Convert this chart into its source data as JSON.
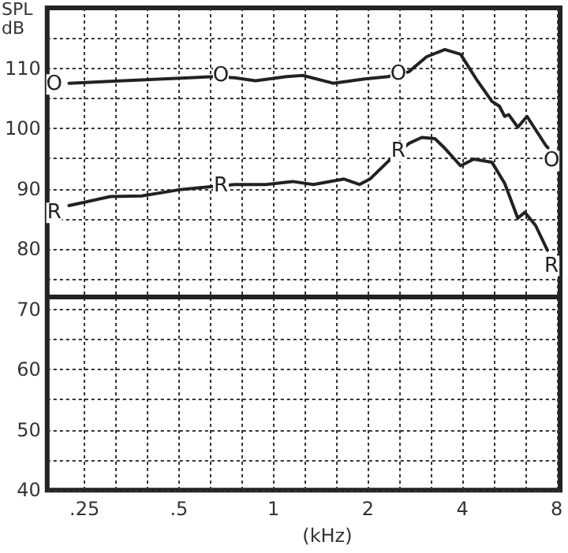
{
  "chart_data": {
    "type": "line",
    "ylabel": "SPL dB",
    "xlabel": "(kHz)",
    "log": "x",
    "xlim": [
      0.19,
      8.2
    ],
    "ylim": [
      40,
      120
    ],
    "xticks": [
      {
        "value": 0.25,
        "label": ".25"
      },
      {
        "value": 0.315,
        "label": null
      },
      {
        "value": 0.397,
        "label": null
      },
      {
        "value": 0.5,
        "label": ".5"
      },
      {
        "value": 0.63,
        "label": null
      },
      {
        "value": 0.794,
        "label": null
      },
      1,
      {
        "value": 1.26,
        "label": null
      },
      {
        "value": 1.587,
        "label": null
      },
      2,
      {
        "value": 2.52,
        "label": null
      },
      {
        "value": 3.17,
        "label": null
      },
      4,
      {
        "value": 5.04,
        "label": null
      },
      {
        "value": 6.35,
        "label": null
      },
      8
    ],
    "yticks": [
      40,
      {
        "value": 45,
        "label": null
      },
      50,
      {
        "value": 55,
        "label": null
      },
      60,
      {
        "value": 65,
        "label": null
      },
      70,
      {
        "value": 75,
        "label": null
      },
      80,
      {
        "value": 85,
        "label": null
      },
      90,
      {
        "value": 95,
        "label": null
      },
      100,
      {
        "value": 105,
        "label": null
      },
      110,
      {
        "value": 115,
        "label": null
      }
    ],
    "grid": true,
    "marker": "none",
    "line_style": "solid",
    "ref_lines": [
      {
        "axis": "y",
        "value": 72,
        "color": "#222222"
      }
    ],
    "annotations": [
      {
        "text": "O",
        "x": 0.2,
        "y": 107.3
      },
      {
        "text": "O",
        "x": 0.68,
        "y": 108.8
      },
      {
        "text": "O",
        "x": 2.5,
        "y": 109
      },
      {
        "text": "O",
        "x": 7.7,
        "y": 94.6
      },
      {
        "text": "R",
        "x": 0.2,
        "y": 86
      },
      {
        "text": "R",
        "x": 0.68,
        "y": 90.5
      },
      {
        "text": "R",
        "x": 2.5,
        "y": 96.2
      },
      {
        "text": "R",
        "x": 7.7,
        "y": 77.2
      }
    ],
    "series": [
      {
        "color": "#222222",
        "x": [
          0.223,
          0.302,
          0.443,
          0.648,
          0.753,
          0.877,
          1.1,
          1.24,
          1.55,
          1.95,
          2.32,
          2.7,
          3.08,
          3.52,
          3.95,
          4.43,
          4.97,
          5.25,
          5.46,
          5.62,
          6.01,
          6.43,
          7.4,
          7.5
        ],
        "values": [
          107.5,
          107.8,
          108.2,
          108.6,
          108.4,
          107.9,
          108.6,
          108.8,
          107.5,
          108.2,
          108.6,
          109.4,
          111.9,
          113.1,
          112.3,
          108.2,
          104.5,
          103.7,
          102.0,
          102.3,
          100.2,
          102.0,
          97.1,
          96.8
        ]
      },
      {
        "color": "#222222",
        "x": [
          0.223,
          0.302,
          0.38,
          0.496,
          0.648,
          0.753,
          0.946,
          1.15,
          1.34,
          1.68,
          1.88,
          2.03,
          2.37,
          2.7,
          2.97,
          3.27,
          3.52,
          3.95,
          4.35,
          4.97,
          5.46,
          6.01,
          6.33,
          6.85,
          7.47
        ],
        "values": [
          87.2,
          88.7,
          88.8,
          89.8,
          90.4,
          90.7,
          90.7,
          91.2,
          90.7,
          91.6,
          90.7,
          91.6,
          95.0,
          97.5,
          98.5,
          98.3,
          96.7,
          93.8,
          94.9,
          94.4,
          90.9,
          85.1,
          86.1,
          83.9,
          79.8
        ]
      }
    ]
  }
}
